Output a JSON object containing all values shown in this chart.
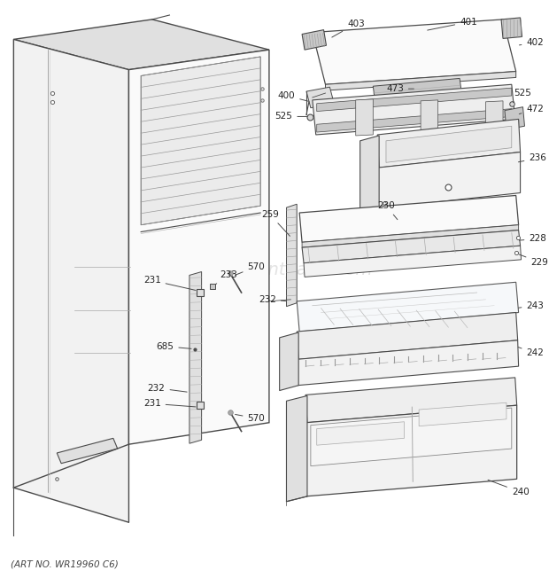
{
  "bg_color": "#ffffff",
  "line_color": "#4a4a4a",
  "fill_light": "#f2f2f2",
  "fill_mid": "#e0e0e0",
  "fill_dark": "#c8c8c8",
  "fill_white": "#fafafa",
  "art_no": "(ART NO. WR19960 C6)",
  "watermark": "ereplacementparts.com",
  "figsize": [
    6.2,
    6.61
  ],
  "dpi": 100
}
